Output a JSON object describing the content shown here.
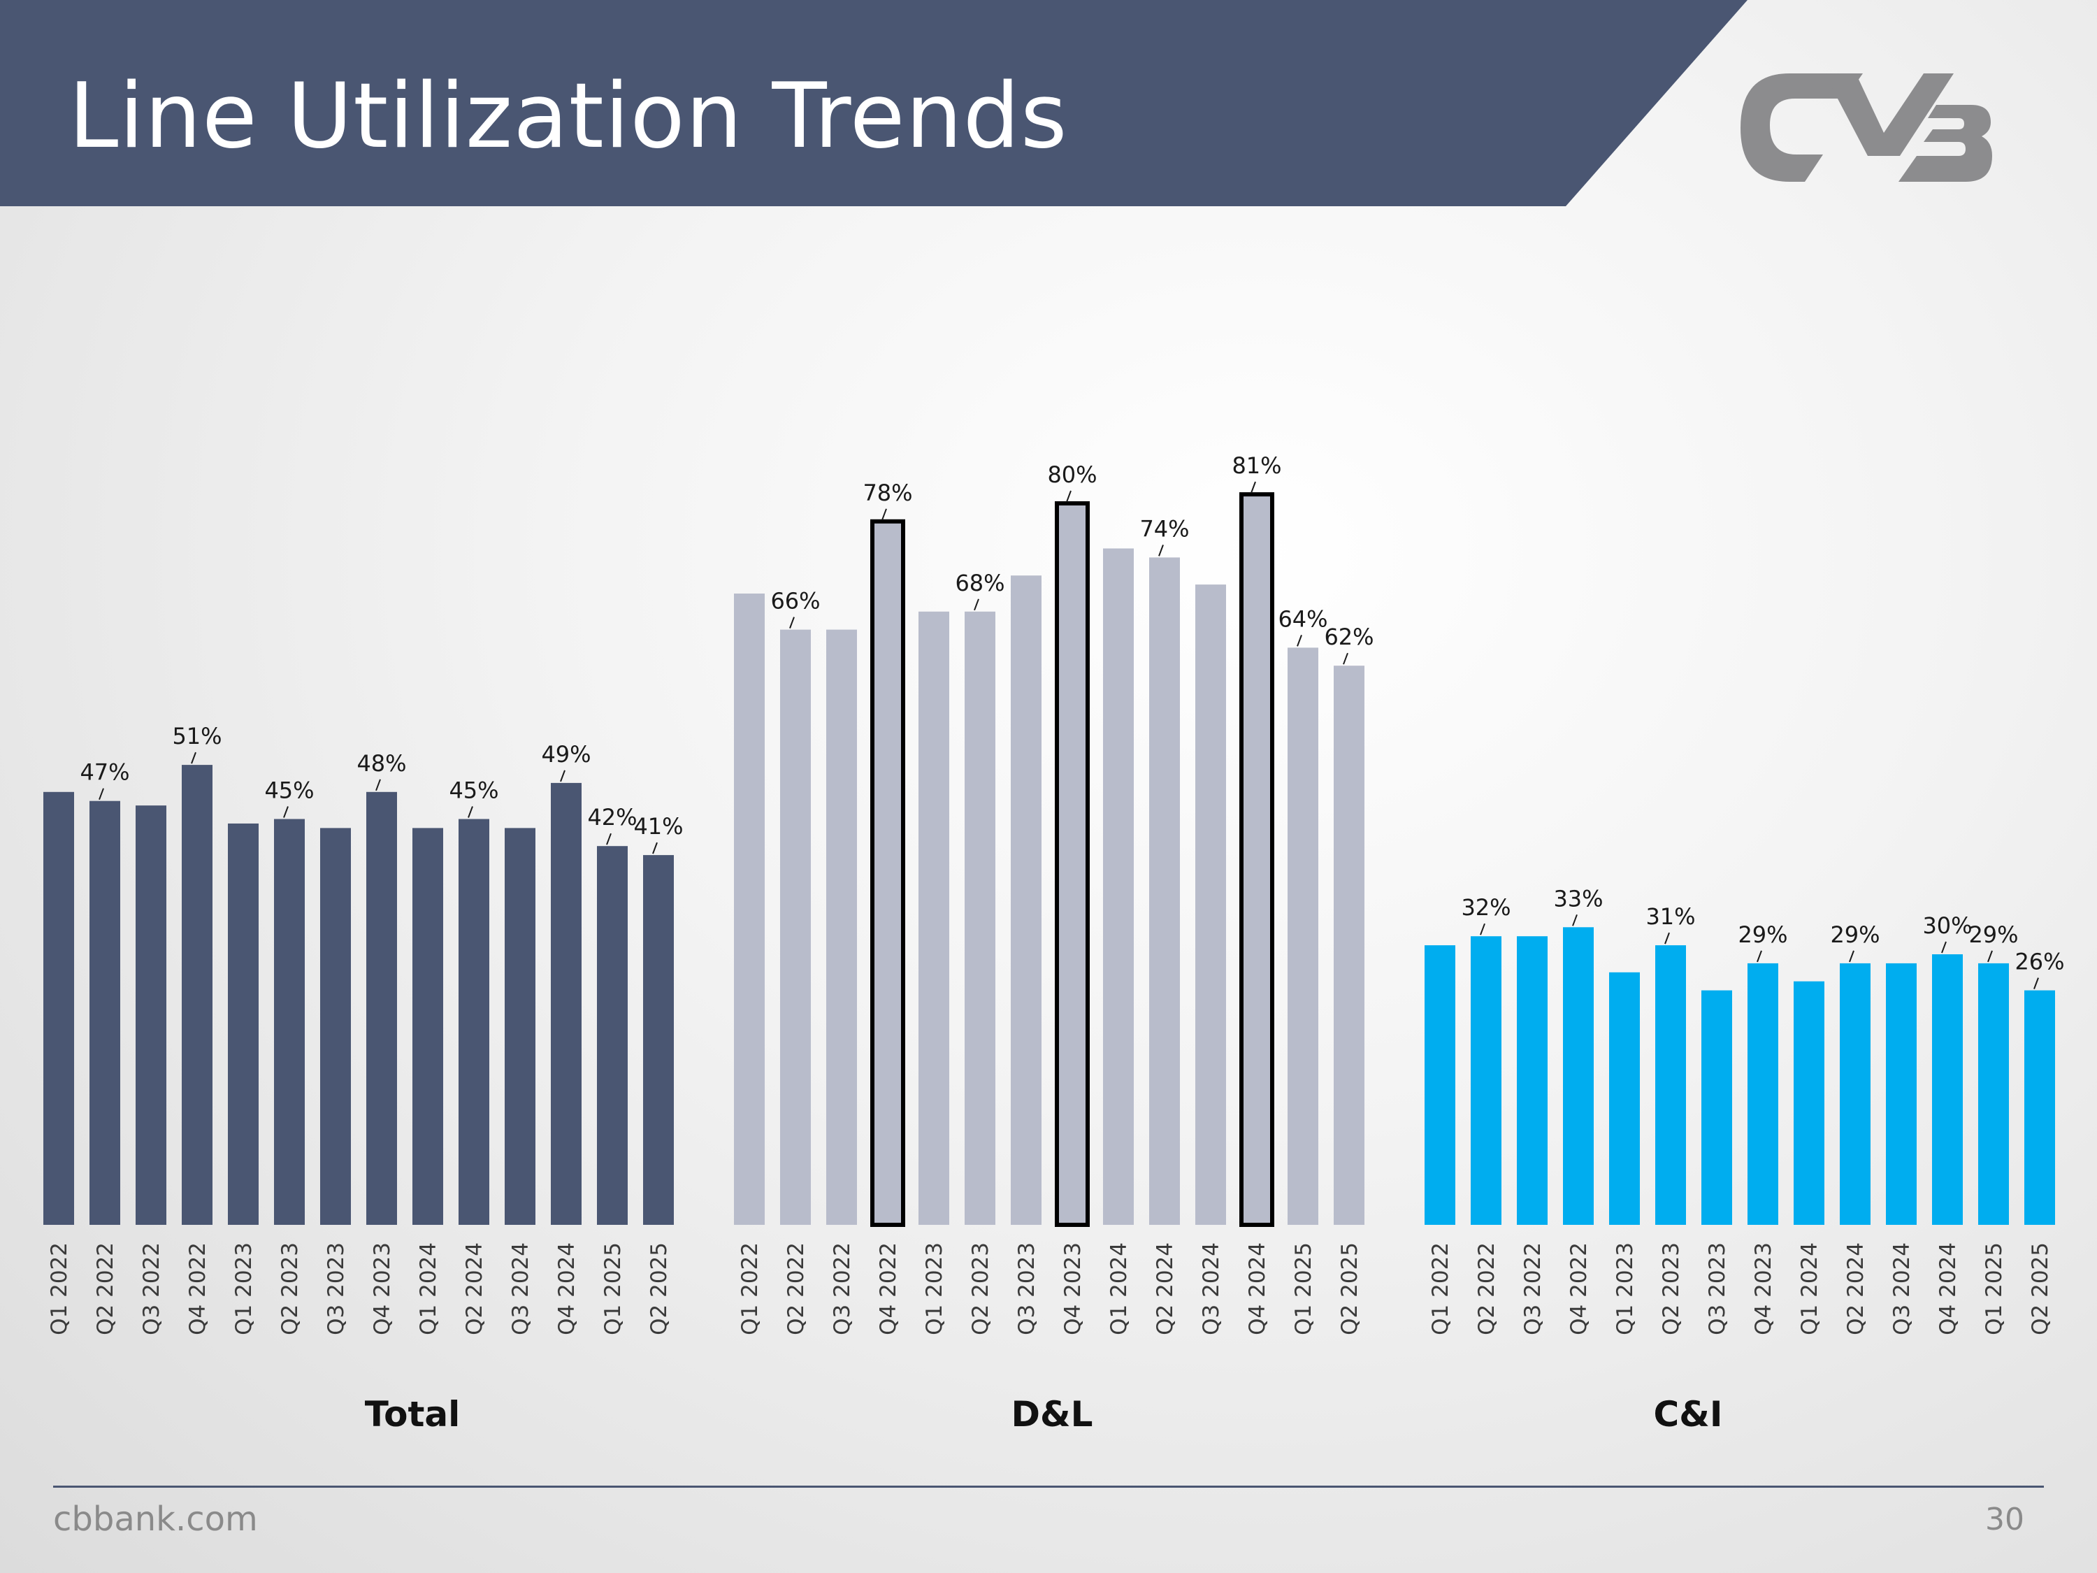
{
  "slide": {
    "title": "Line Utilization Trends",
    "footer_url": "cbbank.com",
    "page_number": "30",
    "logo_alt": "CVB"
  },
  "colors": {
    "header_bg": "#4a5672",
    "total_bar": "#4a5672",
    "dl_bar": "#b8bccb",
    "ci_bar": "#00adef",
    "highlight_outline": "#000000",
    "logo": "#8c8c8e"
  },
  "chart_data": [
    {
      "type": "bar",
      "title": "Total",
      "categories": [
        "Q1 2022",
        "Q2 2022",
        "Q3 2022",
        "Q4 2022",
        "Q1 2023",
        "Q2 2023",
        "Q3 2023",
        "Q4 2023",
        "Q1 2024",
        "Q2 2024",
        "Q3 2024",
        "Q4 2024",
        "Q1 2025",
        "Q2 2025"
      ],
      "values": [
        48,
        47,
        46.5,
        51,
        44.5,
        45,
        44,
        48,
        44,
        45,
        44,
        49,
        42,
        41
      ],
      "data_labels": [
        "",
        "47%",
        "",
        "51%",
        "",
        "45%",
        "",
        "48%",
        "",
        "45%",
        "",
        "49%",
        "42%",
        "41%"
      ],
      "ylim": [
        0,
        100
      ],
      "color": "#4a5672",
      "highlighted": []
    },
    {
      "type": "bar",
      "title": "D&L",
      "categories": [
        "Q1 2022",
        "Q2 2022",
        "Q3 2022",
        "Q4 2022",
        "Q1 2023",
        "Q2 2023",
        "Q3 2023",
        "Q4 2023",
        "Q1 2024",
        "Q2 2024",
        "Q3 2024",
        "Q4 2024",
        "Q1 2025",
        "Q2 2025"
      ],
      "values": [
        70,
        66,
        66,
        78,
        68,
        68,
        72,
        80,
        75,
        74,
        71,
        81,
        64,
        62
      ],
      "data_labels": [
        "",
        "66%",
        "",
        "78%",
        "",
        "68%",
        "",
        "80%",
        "",
        "74%",
        "",
        "81%",
        "64%",
        "62%"
      ],
      "ylim": [
        0,
        100
      ],
      "color": "#b8bccb",
      "highlighted": [
        3,
        7,
        11
      ]
    },
    {
      "type": "bar",
      "title": "C&I",
      "categories": [
        "Q1 2022",
        "Q2 2022",
        "Q3 2022",
        "Q4 2022",
        "Q1 2023",
        "Q2 2023",
        "Q3 2023",
        "Q4 2023",
        "Q1 2024",
        "Q2 2024",
        "Q3 2024",
        "Q4 2024",
        "Q1 2025",
        "Q2 2025"
      ],
      "values": [
        31,
        32,
        32,
        33,
        28,
        31,
        26,
        29,
        27,
        29,
        29,
        30,
        29,
        26
      ],
      "data_labels": [
        "",
        "32%",
        "",
        "33%",
        "",
        "31%",
        "",
        "29%",
        "",
        "29%",
        "",
        "30%",
        "29%",
        "26%"
      ],
      "ylim": [
        0,
        100
      ],
      "color": "#00adef",
      "highlighted": []
    }
  ]
}
